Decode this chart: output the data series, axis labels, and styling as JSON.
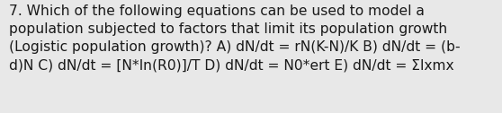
{
  "background_color": "#e8e8e8",
  "text_color": "#1a1a1a",
  "text": "7. Which of the following equations can be used to model a\npopulation subjected to factors that limit its population growth\n(Logistic population growth)? A) dN/dt = rN(K-N)/K B) dN/dt = (b-\nd)N C) dN/dt = [N*ln(R0)]/T D) dN/dt = N0*ert E) dN/dt = Σlxmx",
  "fontsize": 11.2,
  "font_family": "DejaVu Sans",
  "figsize": [
    5.58,
    1.26
  ],
  "dpi": 100
}
